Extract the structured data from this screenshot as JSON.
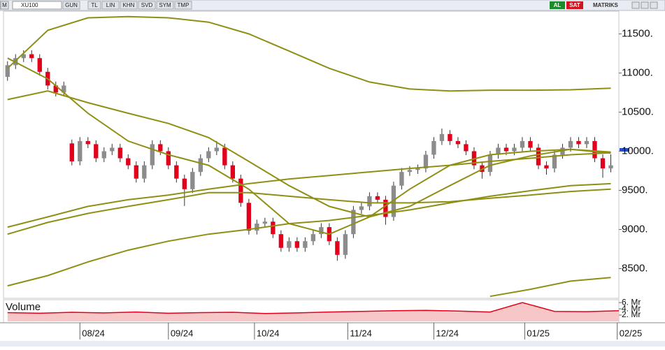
{
  "toolbar": {
    "symbol_menu": "M",
    "symbol": "XU100",
    "buttons": [
      "GUN",
      "TL",
      "LIN",
      "KHN",
      "SVD",
      "SYM",
      "TMP"
    ],
    "buy": "AL",
    "sell": "SAT",
    "brand": "MATRIKS"
  },
  "chart_data": [
    {
      "type": "candlestick",
      "xlim": [
        -0.5,
        76
      ],
      "ylim": [
        8120,
        11790
      ],
      "yticks": [
        {
          "value": 8500,
          "label": "8500."
        },
        {
          "value": 9000,
          "label": "9000."
        },
        {
          "value": 9500,
          "label": "9500."
        },
        {
          "value": 10000,
          "label": "10000."
        },
        {
          "value": 10500,
          "label": "10500."
        },
        {
          "value": 11000,
          "label": "11000."
        },
        {
          "value": 11500,
          "label": "11500."
        }
      ],
      "xticks": [
        {
          "value": 9,
          "label": "08/24"
        },
        {
          "value": 20,
          "label": "09/24"
        },
        {
          "value": 30.7,
          "label": "10/24"
        },
        {
          "value": 42.3,
          "label": "11/24"
        },
        {
          "value": 53,
          "label": "12/24"
        },
        {
          "value": 64.3,
          "label": "01/25"
        },
        {
          "value": 75.8,
          "label": "02/25"
        }
      ],
      "up_color": "#8c8c8c",
      "down_color": "#e3001b",
      "open": [
        10950,
        11100,
        11190,
        11240,
        11190,
        11015,
        10840,
        10750,
        10100,
        9870,
        10130,
        10090,
        9910,
        10000,
        10045,
        9910,
        9820,
        9650,
        9820,
        10090,
        10000,
        9820,
        9650,
        9515,
        9735,
        9910,
        10000,
        10045,
        9820,
        9650,
        9340,
        8985,
        9075,
        9100,
        8940,
        8765,
        8850,
        8765,
        8850,
        8940,
        9030,
        8850,
        8675,
        8940,
        9250,
        9295,
        9425,
        9380,
        9160,
        9560,
        9735,
        9760,
        9780,
        9955,
        10130,
        10220,
        10130,
        10090,
        10000,
        9820,
        9735,
        9955,
        10045,
        10000,
        10045,
        10130,
        10045,
        9820,
        9780,
        9955,
        10045,
        10130,
        10090,
        10130,
        9910,
        9780
      ],
      "high": [
        11150,
        11240,
        11290,
        11290,
        11240,
        11065,
        10890,
        10890,
        10150,
        10180,
        10180,
        10140,
        10050,
        10095,
        10095,
        9960,
        9870,
        9870,
        10140,
        10140,
        10050,
        9870,
        9700,
        9785,
        9960,
        10050,
        10130,
        10095,
        9870,
        9700,
        9390,
        9125,
        9150,
        9150,
        8990,
        8900,
        8900,
        8900,
        8990,
        9080,
        9080,
        8900,
        8990,
        9300,
        9345,
        9475,
        9475,
        9430,
        9610,
        9785,
        9810,
        9830,
        10005,
        10180,
        10290,
        10270,
        10180,
        10140,
        10050,
        9870,
        10005,
        10095,
        10095,
        10095,
        10180,
        10180,
        10095,
        9870,
        10005,
        10095,
        10180,
        10180,
        10180,
        10180,
        9960,
        9960
      ],
      "low": [
        10900,
        11050,
        11140,
        11140,
        10965,
        10790,
        10700,
        10700,
        9820,
        9820,
        10040,
        9860,
        9860,
        9950,
        9860,
        9770,
        9600,
        9600,
        9770,
        9950,
        9770,
        9600,
        9300,
        9465,
        9685,
        9860,
        9950,
        9770,
        9600,
        9290,
        8935,
        8935,
        9025,
        8890,
        8715,
        8715,
        8715,
        8715,
        8800,
        8890,
        8800,
        8600,
        8625,
        8890,
        9200,
        9245,
        9330,
        9060,
        9110,
        9510,
        9685,
        9710,
        9730,
        9905,
        10080,
        10080,
        10040,
        9950,
        9770,
        9650,
        9685,
        9905,
        9950,
        9950,
        9995,
        9995,
        9770,
        9700,
        9730,
        9905,
        9995,
        10040,
        10040,
        9860,
        9660,
        9730
      ],
      "close": [
        11100,
        11190,
        11240,
        11190,
        11015,
        10840,
        10750,
        10840,
        9870,
        10130,
        10090,
        9910,
        10000,
        10045,
        9910,
        9820,
        9650,
        9820,
        10090,
        10000,
        9820,
        9650,
        9515,
        9735,
        9910,
        10000,
        10045,
        9820,
        9650,
        9340,
        8985,
        9075,
        9100,
        8940,
        8765,
        8850,
        8765,
        8850,
        8940,
        9030,
        8850,
        8675,
        8940,
        9250,
        9295,
        9425,
        9380,
        9160,
        9560,
        9735,
        9760,
        9780,
        9955,
        10130,
        10220,
        10130,
        10090,
        10000,
        9820,
        9735,
        9955,
        10045,
        10000,
        10045,
        10130,
        10045,
        9820,
        9780,
        9955,
        10045,
        10130,
        10090,
        10130,
        9910,
        9780,
        9820
      ],
      "lines": [
        {
          "color": "#8f8f14",
          "x": [
            0,
            5,
            10,
            15,
            20,
            25,
            30,
            35,
            40,
            45,
            50,
            55,
            60,
            65,
            70,
            75
          ],
          "values": [
            11060,
            11545,
            11705,
            11720,
            11705,
            11650,
            11500,
            11280,
            11060,
            10885,
            10795,
            10770,
            10780,
            10780,
            10785,
            10805
          ]
        },
        {
          "color": "#8f8f14",
          "x": [
            0,
            5,
            10,
            15,
            20,
            25,
            30,
            35,
            40,
            45,
            50,
            55,
            60,
            65,
            70,
            75
          ],
          "values": [
            11190,
            10925,
            10485,
            10130,
            9955,
            9820,
            9515,
            9075,
            8940,
            9160,
            9515,
            9820,
            9955,
            10000,
            10025,
            9975
          ]
        },
        {
          "color": "#8f8f14",
          "x": [
            0,
            5,
            10,
            15,
            20,
            25,
            30,
            35,
            40,
            45,
            50,
            55,
            60,
            65,
            70,
            75
          ],
          "values": [
            10660,
            10770,
            10620,
            10485,
            10355,
            10175,
            9870,
            9560,
            9295,
            9160,
            9295,
            9560,
            9820,
            9940,
            10025,
            9990
          ]
        },
        {
          "color": "#8f8f14",
          "x": [
            0,
            5,
            10,
            15,
            20,
            25,
            30,
            35,
            40,
            45,
            50,
            55,
            60,
            65,
            70,
            75
          ],
          "values": [
            9030,
            9160,
            9295,
            9380,
            9440,
            9515,
            9585,
            9645,
            9690,
            9735,
            9780,
            9820,
            9870,
            9910,
            9955,
            9980
          ]
        },
        {
          "color": "#8f8f14",
          "x": [
            0,
            5,
            10,
            15,
            20,
            25,
            30,
            35,
            40,
            45,
            50,
            55,
            60,
            65,
            70,
            75
          ],
          "values": [
            8940,
            9090,
            9205,
            9295,
            9380,
            9470,
            9470,
            9425,
            9380,
            9340,
            9340,
            9355,
            9400,
            9440,
            9485,
            9515
          ]
        },
        {
          "color": "#8f8f14",
          "x": [
            0,
            5,
            10,
            15,
            20,
            25,
            30,
            35,
            40,
            45,
            50,
            55,
            60,
            65,
            70,
            75
          ],
          "values": [
            8280,
            8410,
            8585,
            8735,
            8850,
            8940,
            9000,
            9075,
            9115,
            9180,
            9250,
            9340,
            9425,
            9495,
            9560,
            9585
          ]
        },
        {
          "color": "#8f8f14",
          "x": [
            60,
            65,
            70,
            75
          ],
          "values": [
            8145,
            8235,
            8340,
            8385
          ]
        }
      ]
    },
    {
      "type": "area",
      "title": "Volume",
      "color": "#e3001b",
      "fill": "#f7c6c6",
      "xlim": [
        -0.5,
        76
      ],
      "ylim": [
        0,
        6.7
      ],
      "yticks": [
        {
          "value": 2,
          "label": "2. Mr"
        },
        {
          "value": 4,
          "label": "4. Mr"
        },
        {
          "value": 6,
          "label": "6. Mr"
        }
      ],
      "x": [
        0,
        4,
        8,
        12,
        16,
        20,
        24,
        28,
        32,
        36,
        40,
        44,
        48,
        52,
        56,
        60,
        64,
        68,
        72,
        76
      ],
      "values": [
        2.8,
        2.6,
        2.9,
        2.7,
        3.0,
        2.6,
        2.8,
        2.9,
        2.5,
        2.7,
        3.0,
        3.2,
        3.4,
        3.5,
        3.3,
        3.0,
        6.0,
        3.2,
        3.1,
        3.4
      ]
    }
  ]
}
